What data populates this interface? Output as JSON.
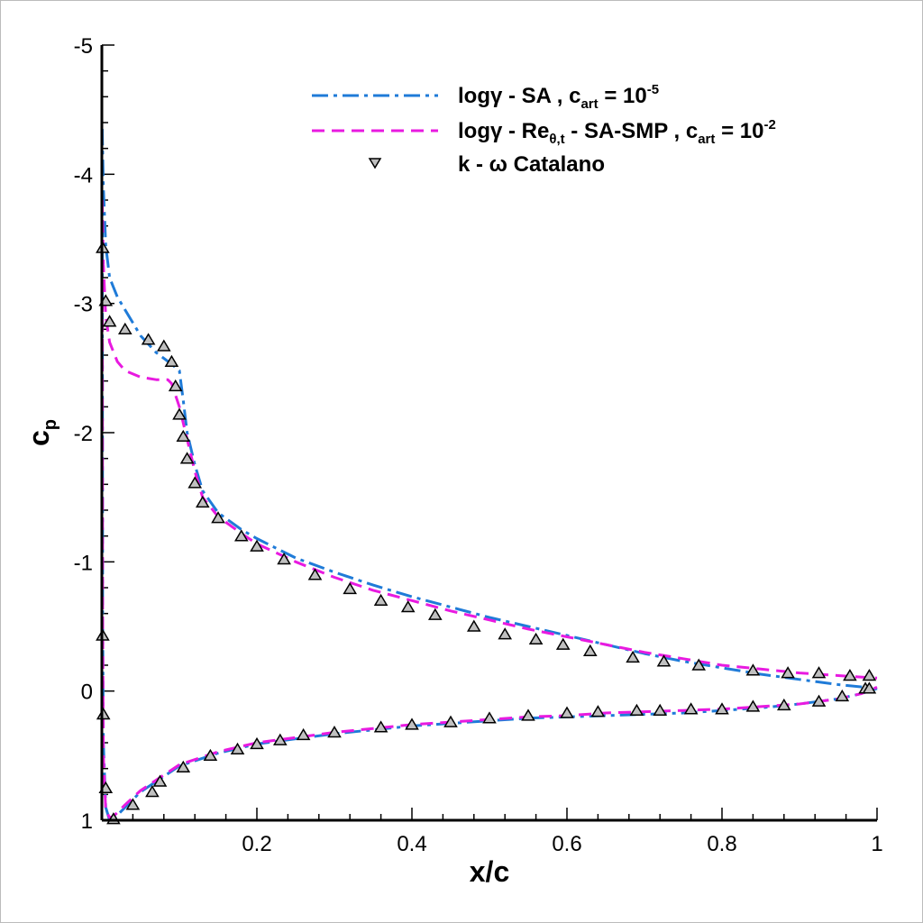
{
  "chart_data": {
    "type": "line",
    "xlabel": "x/c",
    "ylabel_main": "c",
    "ylabel_sub": "p",
    "xlim": [
      0,
      1
    ],
    "ylim": [
      1,
      -5
    ],
    "x_ticks": [
      0.2,
      0.4,
      0.6,
      0.8,
      1.0
    ],
    "x_tick_labels": [
      "0.2",
      "0.4",
      "0.6",
      "0.8",
      "1"
    ],
    "y_ticks": [
      -5,
      -4,
      -3,
      -2,
      -1,
      0,
      1
    ],
    "y_tick_labels": [
      "-5",
      "-4",
      "-3",
      "-2",
      "-1",
      "0",
      "1"
    ],
    "legend_position": "top-right",
    "series": [
      {
        "name": "logγ - SA , c_art = 10^-5",
        "label_parts": {
          "pre": "logγ - SA , c",
          "sub": "art",
          "mid": " = 10",
          "sup": "-5"
        },
        "color": "#1f7bd8",
        "style": "dashdot",
        "upper": [
          [
            0.0005,
            -4.35
          ],
          [
            0.002,
            -3.9
          ],
          [
            0.005,
            -3.45
          ],
          [
            0.01,
            -3.2
          ],
          [
            0.02,
            -3.05
          ],
          [
            0.03,
            -2.95
          ],
          [
            0.05,
            -2.75
          ],
          [
            0.07,
            -2.62
          ],
          [
            0.09,
            -2.53
          ],
          [
            0.1,
            -2.48
          ],
          [
            0.105,
            -2.25
          ],
          [
            0.11,
            -2.0
          ],
          [
            0.12,
            -1.75
          ],
          [
            0.13,
            -1.55
          ],
          [
            0.15,
            -1.38
          ],
          [
            0.18,
            -1.25
          ],
          [
            0.2,
            -1.18
          ],
          [
            0.25,
            -1.03
          ],
          [
            0.3,
            -0.92
          ],
          [
            0.35,
            -0.82
          ],
          [
            0.4,
            -0.73
          ],
          [
            0.45,
            -0.65
          ],
          [
            0.5,
            -0.57
          ],
          [
            0.55,
            -0.5
          ],
          [
            0.6,
            -0.43
          ],
          [
            0.65,
            -0.36
          ],
          [
            0.7,
            -0.29
          ],
          [
            0.75,
            -0.23
          ],
          [
            0.8,
            -0.18
          ],
          [
            0.85,
            -0.13
          ],
          [
            0.9,
            -0.09
          ],
          [
            0.95,
            -0.05
          ],
          [
            1.0,
            -0.02
          ]
        ],
        "lower": [
          [
            0.0005,
            -4.35
          ],
          [
            0.001,
            -0.6
          ],
          [
            0.002,
            0.4
          ],
          [
            0.005,
            0.9
          ],
          [
            0.01,
            1.0
          ],
          [
            0.015,
            0.99
          ],
          [
            0.03,
            0.9
          ],
          [
            0.05,
            0.78
          ],
          [
            0.08,
            0.66
          ],
          [
            0.1,
            0.58
          ],
          [
            0.15,
            0.48
          ],
          [
            0.2,
            0.41
          ],
          [
            0.25,
            0.37
          ],
          [
            0.3,
            0.33
          ],
          [
            0.35,
            0.3
          ],
          [
            0.4,
            0.27
          ],
          [
            0.45,
            0.25
          ],
          [
            0.5,
            0.23
          ],
          [
            0.55,
            0.21
          ],
          [
            0.6,
            0.2
          ],
          [
            0.65,
            0.19
          ],
          [
            0.7,
            0.18
          ],
          [
            0.75,
            0.17
          ],
          [
            0.8,
            0.15
          ],
          [
            0.85,
            0.13
          ],
          [
            0.9,
            0.1
          ],
          [
            0.95,
            0.06
          ],
          [
            0.98,
            0.02
          ],
          [
            1.0,
            -0.02
          ]
        ]
      },
      {
        "name": "logγ - Re_θ,t - SA-SMP , c_art = 10^-2",
        "label_parts": {
          "pre": "logγ - Re",
          "sub1": "θ,t",
          "mid1": " - SA-SMP , c",
          "sub": "art",
          "mid": " = 10",
          "sup": "-2"
        },
        "color": "#e81ae0",
        "style": "dashed",
        "upper": [
          [
            0.0005,
            -3.8
          ],
          [
            0.002,
            -3.3
          ],
          [
            0.005,
            -2.9
          ],
          [
            0.01,
            -2.7
          ],
          [
            0.02,
            -2.55
          ],
          [
            0.03,
            -2.48
          ],
          [
            0.05,
            -2.43
          ],
          [
            0.07,
            -2.41
          ],
          [
            0.085,
            -2.41
          ],
          [
            0.09,
            -2.38
          ],
          [
            0.1,
            -2.2
          ],
          [
            0.11,
            -1.95
          ],
          [
            0.12,
            -1.7
          ],
          [
            0.13,
            -1.5
          ],
          [
            0.15,
            -1.35
          ],
          [
            0.18,
            -1.22
          ],
          [
            0.2,
            -1.14
          ],
          [
            0.25,
            -1.0
          ],
          [
            0.3,
            -0.88
          ],
          [
            0.35,
            -0.78
          ],
          [
            0.4,
            -0.7
          ],
          [
            0.45,
            -0.62
          ],
          [
            0.5,
            -0.55
          ],
          [
            0.55,
            -0.48
          ],
          [
            0.6,
            -0.42
          ],
          [
            0.65,
            -0.36
          ],
          [
            0.7,
            -0.3
          ],
          [
            0.75,
            -0.25
          ],
          [
            0.8,
            -0.2
          ],
          [
            0.85,
            -0.17
          ],
          [
            0.9,
            -0.14
          ],
          [
            0.95,
            -0.12
          ],
          [
            1.0,
            -0.1
          ]
        ],
        "lower": [
          [
            0.0005,
            -3.8
          ],
          [
            0.001,
            -0.6
          ],
          [
            0.002,
            0.5
          ],
          [
            0.005,
            0.92
          ],
          [
            0.01,
            0.98
          ],
          [
            0.015,
            0.97
          ],
          [
            0.03,
            0.88
          ],
          [
            0.05,
            0.77
          ],
          [
            0.08,
            0.65
          ],
          [
            0.1,
            0.57
          ],
          [
            0.15,
            0.47
          ],
          [
            0.2,
            0.4
          ],
          [
            0.25,
            0.36
          ],
          [
            0.3,
            0.32
          ],
          [
            0.35,
            0.29
          ],
          [
            0.4,
            0.26
          ],
          [
            0.45,
            0.24
          ],
          [
            0.5,
            0.22
          ],
          [
            0.55,
            0.2
          ],
          [
            0.6,
            0.19
          ],
          [
            0.65,
            0.17
          ],
          [
            0.7,
            0.16
          ],
          [
            0.75,
            0.15
          ],
          [
            0.8,
            0.14
          ],
          [
            0.85,
            0.12
          ],
          [
            0.9,
            0.1
          ],
          [
            0.95,
            0.06
          ],
          [
            0.98,
            0.02
          ],
          [
            1.0,
            -0.03
          ]
        ]
      },
      {
        "name": "k - ω  Catalano",
        "label_text": "k - ω  Catalano",
        "marker": "triangle",
        "fill": "#c0c0c0",
        "points": [
          [
            0.001,
            -3.43
          ],
          [
            0.005,
            -3.02
          ],
          [
            0.01,
            -2.86
          ],
          [
            0.03,
            -2.8
          ],
          [
            0.06,
            -2.72
          ],
          [
            0.08,
            -2.67
          ],
          [
            0.09,
            -2.55
          ],
          [
            0.095,
            -2.36
          ],
          [
            0.1,
            -2.14
          ],
          [
            0.105,
            -1.97
          ],
          [
            0.11,
            -1.8
          ],
          [
            0.12,
            -1.61
          ],
          [
            0.13,
            -1.46
          ],
          [
            0.15,
            -1.34
          ],
          [
            0.18,
            -1.2
          ],
          [
            0.2,
            -1.12
          ],
          [
            0.235,
            -1.02
          ],
          [
            0.275,
            -0.9
          ],
          [
            0.32,
            -0.79
          ],
          [
            0.36,
            -0.7
          ],
          [
            0.395,
            -0.65
          ],
          [
            0.43,
            -0.59
          ],
          [
            0.48,
            -0.5
          ],
          [
            0.52,
            -0.44
          ],
          [
            0.56,
            -0.4
          ],
          [
            0.595,
            -0.36
          ],
          [
            0.63,
            -0.31
          ],
          [
            0.685,
            -0.26
          ],
          [
            0.725,
            -0.23
          ],
          [
            0.77,
            -0.2
          ],
          [
            0.84,
            -0.16
          ],
          [
            0.885,
            -0.14
          ],
          [
            0.925,
            -0.14
          ],
          [
            0.965,
            -0.12
          ],
          [
            0.99,
            -0.12
          ],
          [
            0.001,
            -0.43
          ],
          [
            0.002,
            0.18
          ],
          [
            0.005,
            0.75
          ],
          [
            0.015,
            0.99
          ],
          [
            0.04,
            0.88
          ],
          [
            0.065,
            0.78
          ],
          [
            0.075,
            0.7
          ],
          [
            0.105,
            0.59
          ],
          [
            0.14,
            0.5
          ],
          [
            0.175,
            0.45
          ],
          [
            0.2,
            0.41
          ],
          [
            0.23,
            0.38
          ],
          [
            0.26,
            0.34
          ],
          [
            0.3,
            0.32
          ],
          [
            0.36,
            0.28
          ],
          [
            0.4,
            0.26
          ],
          [
            0.45,
            0.24
          ],
          [
            0.5,
            0.21
          ],
          [
            0.55,
            0.19
          ],
          [
            0.6,
            0.17
          ],
          [
            0.64,
            0.16
          ],
          [
            0.69,
            0.15
          ],
          [
            0.72,
            0.15
          ],
          [
            0.76,
            0.14
          ],
          [
            0.8,
            0.14
          ],
          [
            0.84,
            0.12
          ],
          [
            0.88,
            0.11
          ],
          [
            0.925,
            0.08
          ],
          [
            0.955,
            0.04
          ],
          [
            0.985,
            -0.02
          ],
          [
            0.99,
            -0.02
          ]
        ]
      }
    ]
  }
}
